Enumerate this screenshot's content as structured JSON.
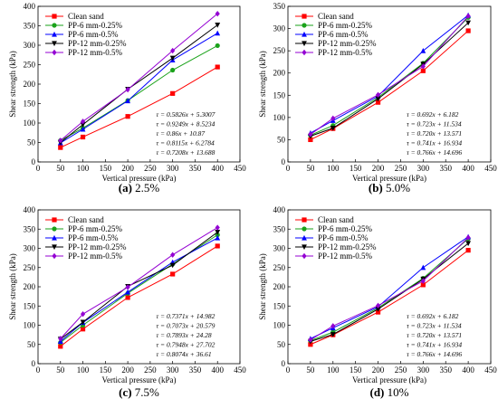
{
  "figure": {
    "series_colors": [
      "#ff0000",
      "#1aa21a",
      "#0000ff",
      "#000000",
      "#9400d3"
    ],
    "markers": [
      "square",
      "circle",
      "triangle",
      "triangle-down",
      "diamond"
    ]
  },
  "chart_data": [
    {
      "type": "line",
      "caption_letter": "(a)",
      "caption_text": " 2.5%",
      "xlabel": "Vertical pressure (kPa)",
      "ylabel": "Shear strength (kPa)",
      "xlim": [
        0,
        450
      ],
      "ylim": [
        0,
        400
      ],
      "xticks": [
        0,
        50,
        100,
        150,
        200,
        250,
        300,
        350,
        400,
        450
      ],
      "yticks": [
        0,
        50,
        100,
        150,
        200,
        250,
        300,
        350,
        400
      ],
      "legend_position": "top-left",
      "equations_position": "bottom-right",
      "x": [
        50,
        100,
        200,
        300,
        400
      ],
      "series": [
        {
          "name": "Clean sand",
          "values": [
            37,
            64,
            117,
            176,
            244
          ]
        },
        {
          "name": "PP-6 mm-0.25%",
          "values": [
            55,
            87,
            158,
            236,
            299
          ]
        },
        {
          "name": "PP-6 mm-0.5%",
          "values": [
            49,
            84,
            157,
            262,
            331
          ]
        },
        {
          "name": "PP-12 mm-0.25%",
          "values": [
            50,
            96,
            187,
            267,
            352
          ]
        },
        {
          "name": "PP-12 mm-0.5%",
          "values": [
            55,
            104,
            186,
            286,
            381
          ]
        }
      ],
      "equations": [
        "τ = 0.5826x + 5.3007",
        "τ = 0.9249x + 8.5234",
        "τ = 0.86x + 10.87",
        "τ = 0.8115x + 6.2784",
        "τ = 0.7208x + 13.688"
      ]
    },
    {
      "type": "line",
      "caption_letter": "(b)",
      "caption_text": " 5.0%",
      "xlabel": "Vertical pressure (kPa)",
      "ylabel": "Shear strength (kPa)",
      "xlim": [
        0,
        450
      ],
      "ylim": [
        0,
        350
      ],
      "xticks": [
        0,
        50,
        100,
        150,
        200,
        250,
        300,
        350,
        400,
        450
      ],
      "yticks": [
        0,
        50,
        100,
        150,
        200,
        250,
        300,
        350
      ],
      "legend_position": "top-left",
      "equations_position": "bottom-right",
      "x": [
        50,
        100,
        200,
        300,
        400
      ],
      "series": [
        {
          "name": "Clean sand",
          "values": [
            50,
            75,
            134,
            205,
            295
          ]
        },
        {
          "name": "PP-6 mm-0.25%",
          "values": [
            60,
            82,
            145,
            222,
            325
          ]
        },
        {
          "name": "PP-6 mm-0.5%",
          "values": [
            65,
            93,
            148,
            250,
            330
          ]
        },
        {
          "name": "PP-12 mm-0.25%",
          "values": [
            58,
            76,
            142,
            220,
            313
          ]
        },
        {
          "name": "PP-12 mm-0.5%",
          "values": [
            62,
            98,
            151,
            215,
            328
          ]
        }
      ],
      "equations": [
        "τ = 0.692x + 6.182",
        "τ = 0.723x + 11.534",
        "τ = 0.720x + 13.571",
        "τ = 0.741x + 16.934",
        "τ = 0.766x + 14.696"
      ]
    },
    {
      "type": "line",
      "caption_letter": "(c)",
      "caption_text": " 7.5%",
      "xlabel": "Vertical pressure (kPa)",
      "ylabel": "Shear strength (kPa)",
      "xlim": [
        0,
        450
      ],
      "ylim": [
        0,
        400
      ],
      "xticks": [
        0,
        50,
        100,
        150,
        200,
        250,
        300,
        350,
        400,
        450
      ],
      "yticks": [
        0,
        50,
        100,
        150,
        200,
        250,
        300,
        350,
        400
      ],
      "legend_position": "top-left",
      "equations_position": "bottom-right",
      "x": [
        50,
        100,
        200,
        300,
        400
      ],
      "series": [
        {
          "name": "Clean sand",
          "values": [
            45,
            90,
            172,
            233,
            306
          ]
        },
        {
          "name": "PP-6 mm-0.25%",
          "values": [
            55,
            100,
            183,
            259,
            335
          ]
        },
        {
          "name": "PP-6 mm-0.5%",
          "values": [
            58,
            107,
            186,
            264,
            327
          ]
        },
        {
          "name": "PP-12 mm-0.25%",
          "values": [
            64,
            108,
            201,
            256,
            342
          ]
        },
        {
          "name": "PP-12 mm-0.5%",
          "values": [
            65,
            129,
            199,
            283,
            354
          ]
        }
      ],
      "equations": [
        "τ = 0.7371x + 14.982",
        "τ = 0.7073x + 20.579",
        "τ = 0.7893x + 24.28",
        "τ = 0.7948x + 27.702",
        "τ = 0.8074x + 36.61"
      ]
    },
    {
      "type": "line",
      "caption_letter": "(d)",
      "caption_text": " 10%",
      "xlabel": "Vertical pressure (kPa)",
      "ylabel": "Shear strength (kPa)",
      "xlim": [
        0,
        450
      ],
      "ylim": [
        0,
        400
      ],
      "xticks": [
        0,
        50,
        100,
        150,
        200,
        250,
        300,
        350,
        400,
        450
      ],
      "yticks": [
        0,
        50,
        100,
        150,
        200,
        250,
        300,
        350,
        400
      ],
      "legend_position": "top-left",
      "equations_position": "bottom-right",
      "x": [
        50,
        100,
        200,
        300,
        400
      ],
      "series": [
        {
          "name": "Clean sand",
          "values": [
            50,
            75,
            134,
            205,
            295
          ]
        },
        {
          "name": "PP-6 mm-0.25%",
          "values": [
            60,
            82,
            145,
            222,
            325
          ]
        },
        {
          "name": "PP-6 mm-0.5%",
          "values": [
            65,
            93,
            148,
            250,
            330
          ]
        },
        {
          "name": "PP-12 mm-0.25%",
          "values": [
            58,
            76,
            142,
            220,
            313
          ]
        },
        {
          "name": "PP-12 mm-0.5%",
          "values": [
            62,
            98,
            151,
            215,
            328
          ]
        }
      ],
      "equations": [
        "τ = 0.692x + 6.182",
        "τ = 0.723x + 11.534",
        "τ = 0.720x + 13.571",
        "τ = 0.741x + 16.934",
        "τ = 0.766x + 14.696"
      ]
    }
  ]
}
